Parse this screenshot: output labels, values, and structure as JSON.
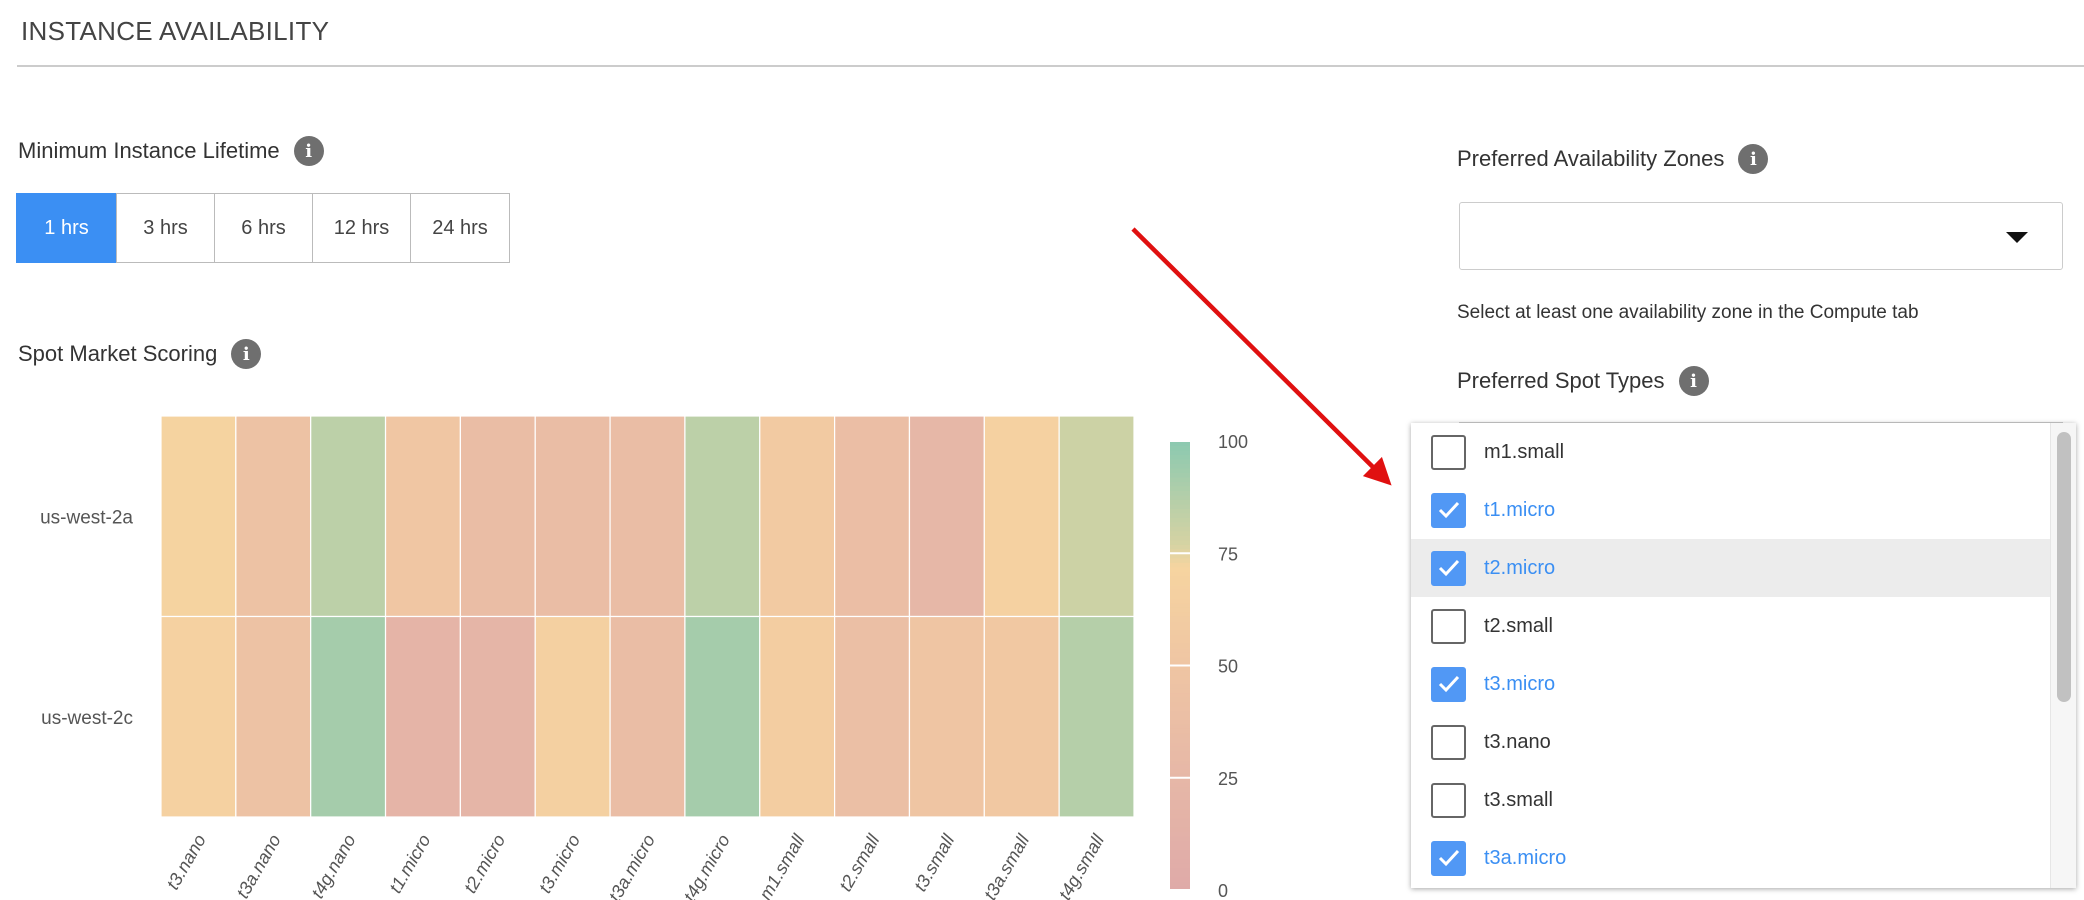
{
  "section_title": "INSTANCE AVAILABILITY",
  "lifetime": {
    "label": "Minimum Instance Lifetime",
    "options": [
      "1 hrs",
      "3 hrs",
      "6 hrs",
      "12 hrs",
      "24 hrs"
    ],
    "selected": "1 hrs"
  },
  "scoring": {
    "label": "Spot Market Scoring"
  },
  "zones": {
    "label": "Preferred Availability Zones",
    "value": "",
    "help": "Select at least one availability zone in the Compute tab"
  },
  "spot_types": {
    "label": "Preferred Spot Types",
    "items": [
      {
        "label": "m1.small",
        "checked": false
      },
      {
        "label": "t1.micro",
        "checked": true
      },
      {
        "label": "t2.micro",
        "checked": true,
        "highlighted": true
      },
      {
        "label": "t2.small",
        "checked": false
      },
      {
        "label": "t3.micro",
        "checked": true
      },
      {
        "label": "t3.nano",
        "checked": false
      },
      {
        "label": "t3.small",
        "checked": false
      },
      {
        "label": "t3a.micro",
        "checked": true
      }
    ]
  },
  "colors": {
    "accent": "#3b8ff3",
    "arrow": "#e01010"
  },
  "chart_data": {
    "type": "heatmap",
    "x": [
      "t3.nano",
      "t3a.nano",
      "t4g.nano",
      "t1.micro",
      "t2.micro",
      "t3.micro",
      "t3a.micro",
      "t4g.micro",
      "m1.small",
      "t2.small",
      "t3.small",
      "t3a.small",
      "t4g.small"
    ],
    "y": [
      "us-west-2a",
      "us-west-2c"
    ],
    "z": [
      [
        70,
        45,
        85,
        52,
        35,
        35,
        35,
        85,
        58,
        38,
        25,
        68,
        80
      ],
      [
        68,
        45,
        92,
        20,
        22,
        66,
        35,
        92,
        62,
        40,
        50,
        55,
        87
      ]
    ],
    "zlim": [
      0,
      100
    ],
    "colorbar_ticks": [
      0,
      25,
      50,
      75,
      100
    ],
    "colorscale": [
      [
        0,
        "#dfaaa8"
      ],
      [
        25,
        "#e6b7a7"
      ],
      [
        50,
        "#efc5a3"
      ],
      [
        72,
        "#f6d4a0"
      ],
      [
        77,
        "#d6d3a3"
      ],
      [
        100,
        "#8bc9b0"
      ]
    ]
  }
}
